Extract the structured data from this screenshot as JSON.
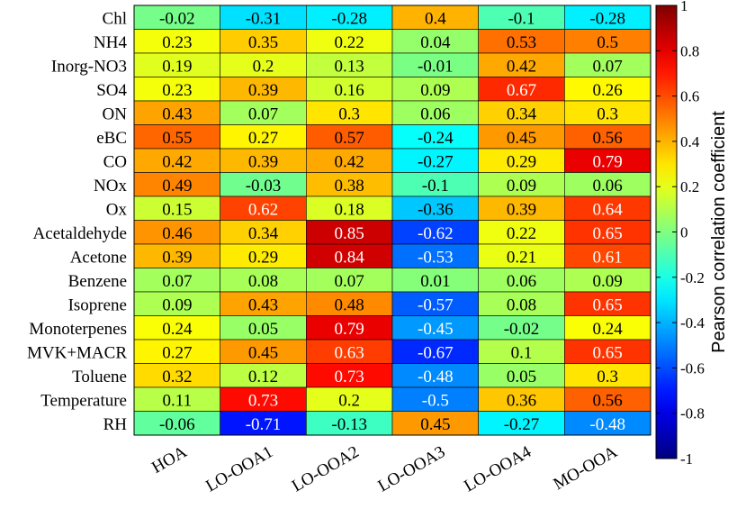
{
  "chart_data": {
    "type": "heatmap",
    "rows": [
      "Chl",
      "NH4",
      "Inorg-NO3",
      "SO4",
      "ON",
      "eBC",
      "CO",
      "NOx",
      "Ox",
      "Acetaldehyde",
      "Acetone",
      "Benzene",
      "Isoprene",
      "Monoterpenes",
      "MVK+MACR",
      "Toluene",
      "Temperature",
      "RH"
    ],
    "columns": [
      "HOA",
      "LO-OOA1",
      "LO-OOA2",
      "LO-OOA3",
      "LO-OOA4",
      "MO-OOA"
    ],
    "values": [
      [
        -0.02,
        -0.31,
        -0.28,
        0.4,
        -0.1,
        -0.28
      ],
      [
        0.23,
        0.35,
        0.22,
        0.04,
        0.53,
        0.5
      ],
      [
        0.19,
        0.2,
        0.13,
        -0.01,
        0.42,
        0.07
      ],
      [
        0.23,
        0.39,
        0.16,
        0.09,
        0.67,
        0.26
      ],
      [
        0.43,
        0.07,
        0.3,
        0.06,
        0.34,
        0.3
      ],
      [
        0.55,
        0.27,
        0.57,
        -0.24,
        0.45,
        0.56
      ],
      [
        0.42,
        0.39,
        0.42,
        -0.27,
        0.29,
        0.79
      ],
      [
        0.49,
        -0.03,
        0.38,
        -0.1,
        0.09,
        0.06
      ],
      [
        0.15,
        0.62,
        0.18,
        -0.36,
        0.39,
        0.64
      ],
      [
        0.46,
        0.34,
        0.85,
        -0.62,
        0.22,
        0.65
      ],
      [
        0.39,
        0.29,
        0.84,
        -0.53,
        0.21,
        0.61
      ],
      [
        0.07,
        0.08,
        0.07,
        0.01,
        0.06,
        0.09
      ],
      [
        0.09,
        0.43,
        0.48,
        -0.57,
        0.08,
        0.65
      ],
      [
        0.24,
        0.05,
        0.79,
        -0.45,
        -0.02,
        0.24
      ],
      [
        0.27,
        0.45,
        0.63,
        -0.67,
        0.1,
        0.65
      ],
      [
        0.32,
        0.12,
        0.73,
        -0.48,
        0.05,
        0.3
      ],
      [
        0.11,
        0.73,
        0.2,
        -0.5,
        0.36,
        0.56
      ],
      [
        -0.06,
        -0.71,
        -0.13,
        0.45,
        -0.27,
        -0.48
      ]
    ],
    "colorbar": {
      "label": "Pearson correlation coefficient",
      "range": [
        -1,
        1
      ],
      "ticks": [
        1,
        0.8,
        0.6,
        0.4,
        0.2,
        0,
        -0.2,
        -0.4,
        -0.6,
        -0.8,
        -1
      ],
      "tick_labels": [
        "1",
        "0.8",
        "0.6",
        "0.4",
        "0.2",
        "0",
        "-0.2",
        "-0.4",
        "-0.6",
        "-0.8",
        "-1"
      ],
      "colormap": "jet"
    }
  }
}
